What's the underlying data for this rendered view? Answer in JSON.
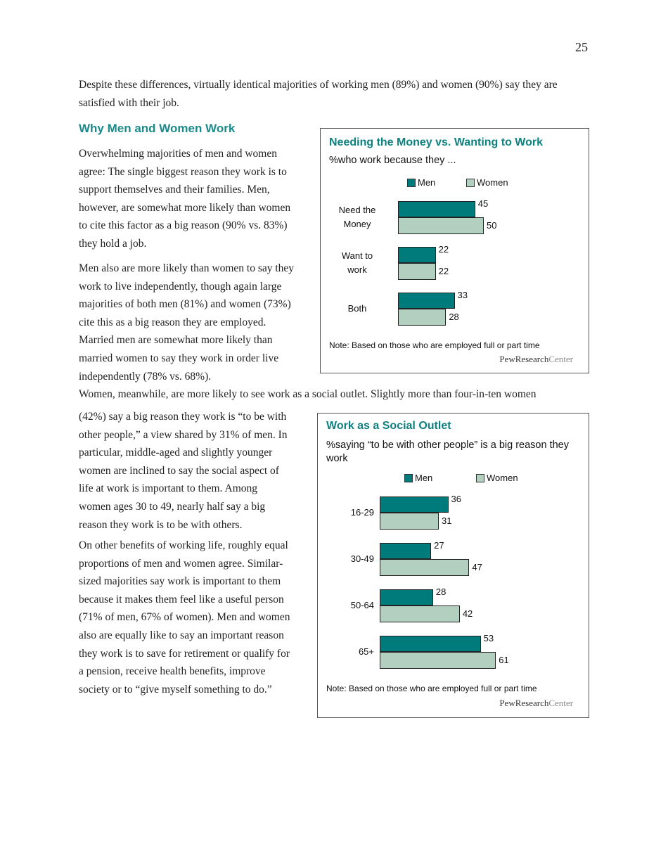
{
  "page_number": "25",
  "intro": [
    "Despite these differences, virtually identical majorities of working men (89%) and women (90%) say they are",
    "satisfied with their job."
  ],
  "section_heading": "Why Men and Women Work",
  "para1": [
    "Overwhelming majorities of men and women",
    "agree: The single biggest reason they work is to",
    "support themselves and their families. Men,",
    "however, are somewhat more likely than women",
    "to cite this factor as a big reason (90% vs. 83%)",
    "they hold a job."
  ],
  "para2": [
    "Men also are more likely than women to say they",
    "work to live independently, though again large",
    "majorities of both men (81%) and women (73%)",
    "cite this as a big reason they are employed.",
    "Married men are somewhat more likely than",
    "married women to say they work in order live",
    "independently (78% vs. 68%)."
  ],
  "para3_full": "Women, meanwhile, are more likely to see work as a social outlet. Slightly more than four-in-ten women",
  "para3": [
    "(42%) say a big reason they work is “to be with",
    "other people,” a view shared by 31% of men. In",
    "particular, middle-aged and slightly younger",
    "women are inclined to say the social aspect of",
    "life at work is important to them. Among",
    "women ages 30 to 49, nearly half say a big",
    "reason they work is to be with others."
  ],
  "para4": [
    "On other benefits of working life, roughly equal",
    "proportions of men and women agree. Similar-",
    "sized majorities say work is important to them",
    "because it makes them feel like a useful person",
    "(71% of men, 67% of women). Men and women",
    "also are equally like to say an important reason",
    "they work is to save for retirement or qualify for",
    "a pension, receive health benefits, improve",
    "society or to “give myself something to do.”"
  ],
  "colors": {
    "men": "#007b7b",
    "women": "#b3cfbf",
    "heading": "#1a8a8a"
  },
  "chart_data": [
    {
      "type": "bar",
      "orientation": "horizontal",
      "title": "Needing the Money vs. Wanting to Work",
      "subtitle": "%who work because they ...",
      "legend": [
        "Men",
        "Women"
      ],
      "legend_placement": "top",
      "categories": [
        "Need the\nMoney",
        "Want to\nwork",
        "Both"
      ],
      "series": [
        {
          "name": "Men",
          "values": [
            45,
            22,
            33
          ]
        },
        {
          "name": "Women",
          "values": [
            50,
            22,
            28
          ]
        }
      ],
      "note": "Note: Based on those who are employed full or part time",
      "source_logo": [
        "PewResearch",
        "Center"
      ]
    },
    {
      "type": "bar",
      "orientation": "horizontal",
      "title": "Work as a Social Outlet",
      "subtitle": "%saying “to be with other people” is a big reason they work",
      "legend": [
        "Men",
        "Women"
      ],
      "legend_placement": "top",
      "categories": [
        "16-29",
        "30-49",
        "50-64",
        "65+"
      ],
      "series": [
        {
          "name": "Men",
          "values": [
            36,
            27,
            28,
            53
          ]
        },
        {
          "name": "Women",
          "values": [
            31,
            47,
            42,
            61
          ]
        }
      ],
      "note": "Note: Based on those who are employed full or part time",
      "source_logo": [
        "PewResearch",
        "Center"
      ]
    }
  ]
}
